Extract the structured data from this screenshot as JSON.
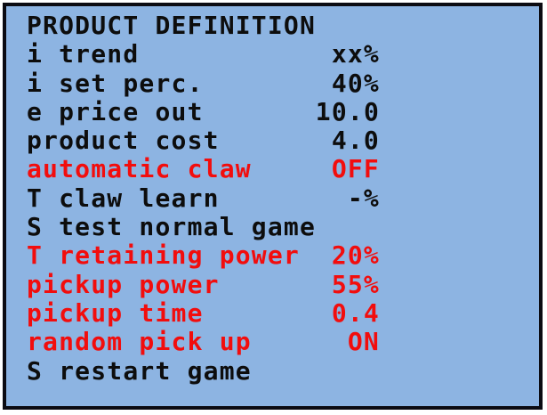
{
  "panel": {
    "title": "PRODUCT DEFINITION",
    "colors": {
      "background": "#8DB4E2",
      "border": "#0B0B12",
      "text": "#0D0D0D",
      "highlight": "#F20D0D",
      "page_background": "#FFFFFF"
    },
    "rows": [
      {
        "label": "i trend",
        "value": "xx%",
        "highlighted": false
      },
      {
        "label": "i set perc.",
        "value": "40%",
        "highlighted": false
      },
      {
        "label": "e price out",
        "value": "10.0",
        "highlighted": false
      },
      {
        "label": "product cost",
        "value": "4.0",
        "highlighted": false
      },
      {
        "label": "automatic claw",
        "value": "OFF",
        "highlighted": true
      },
      {
        "label": "T claw learn",
        "value": "-%",
        "highlighted": false
      },
      {
        "label": "S test normal game",
        "value": "",
        "highlighted": false
      },
      {
        "label": "T retaining power",
        "value": "20%",
        "highlighted": true
      },
      {
        "label": "pickup power",
        "value": "55%",
        "highlighted": true
      },
      {
        "label": "pickup time",
        "value": "0.4",
        "highlighted": true
      },
      {
        "label": "random pick up",
        "value": "ON",
        "highlighted": true
      },
      {
        "label": "S restart game",
        "value": "",
        "highlighted": false
      }
    ]
  }
}
